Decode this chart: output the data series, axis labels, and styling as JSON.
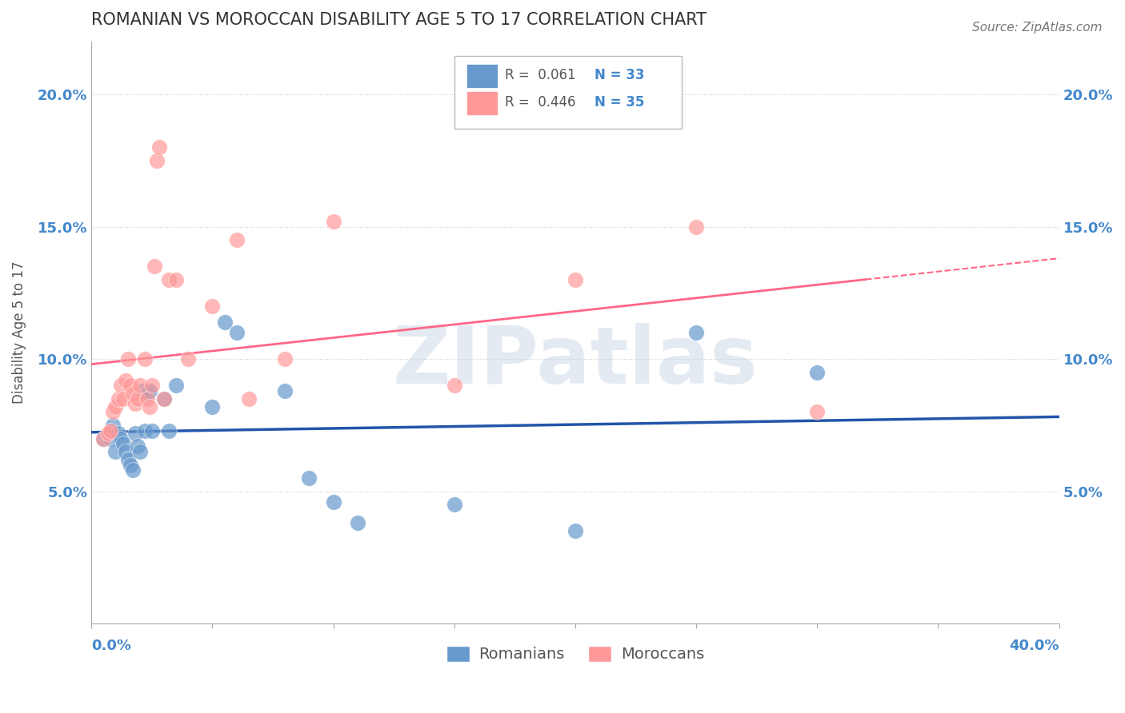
{
  "title": "ROMANIAN VS MOROCCAN DISABILITY AGE 5 TO 17 CORRELATION CHART",
  "source": "Source: ZipAtlas.com",
  "ylabel": "Disability Age 5 to 17",
  "watermark": "ZIPatlas",
  "legend": {
    "romanian_R": "0.061",
    "romanian_N": "33",
    "moroccan_R": "0.446",
    "moroccan_N": "35",
    "romanian_label": "Romanians",
    "moroccan_label": "Moroccans"
  },
  "yticks": [
    0.05,
    0.1,
    0.15,
    0.2
  ],
  "ytick_labels": [
    "5.0%",
    "10.0%",
    "15.0%",
    "20.0%"
  ],
  "xlim": [
    0.0,
    0.4
  ],
  "ylim": [
    0.0,
    0.22
  ],
  "romanian_color": "#6699CC",
  "moroccan_color": "#FF9999",
  "romanian_line_color": "#2255AA",
  "moroccan_line_color": "#FF6688",
  "background_color": "#FFFFFF",
  "grid_color": "#CCCCCC",
  "title_color": "#333333",
  "axis_label_color": "#4488CC",
  "romanians_x": [
    0.005,
    0.008,
    0.009,
    0.01,
    0.011,
    0.012,
    0.013,
    0.014,
    0.015,
    0.016,
    0.017,
    0.018,
    0.019,
    0.02,
    0.021,
    0.022,
    0.023,
    0.024,
    0.025,
    0.03,
    0.032,
    0.035,
    0.05,
    0.055,
    0.06,
    0.08,
    0.09,
    0.1,
    0.11,
    0.15,
    0.2,
    0.25,
    0.3
  ],
  "romanians_y": [
    0.07,
    0.07,
    0.075,
    0.065,
    0.072,
    0.07,
    0.068,
    0.065,
    0.062,
    0.06,
    0.058,
    0.072,
    0.067,
    0.065,
    0.088,
    0.073,
    0.087,
    0.088,
    0.073,
    0.085,
    0.073,
    0.09,
    0.082,
    0.114,
    0.11,
    0.088,
    0.055,
    0.046,
    0.038,
    0.045,
    0.035,
    0.11,
    0.095
  ],
  "moroccans_x": [
    0.005,
    0.007,
    0.008,
    0.009,
    0.01,
    0.011,
    0.012,
    0.013,
    0.014,
    0.015,
    0.016,
    0.017,
    0.018,
    0.019,
    0.02,
    0.022,
    0.023,
    0.024,
    0.025,
    0.026,
    0.027,
    0.028,
    0.03,
    0.032,
    0.035,
    0.04,
    0.05,
    0.06,
    0.065,
    0.08,
    0.1,
    0.15,
    0.2,
    0.25,
    0.3
  ],
  "moroccans_y": [
    0.07,
    0.072,
    0.073,
    0.08,
    0.082,
    0.085,
    0.09,
    0.085,
    0.092,
    0.1,
    0.09,
    0.087,
    0.083,
    0.085,
    0.09,
    0.1,
    0.085,
    0.082,
    0.09,
    0.135,
    0.175,
    0.18,
    0.085,
    0.13,
    0.13,
    0.1,
    0.12,
    0.145,
    0.085,
    0.1,
    0.152,
    0.09,
    0.13,
    0.15,
    0.08
  ]
}
